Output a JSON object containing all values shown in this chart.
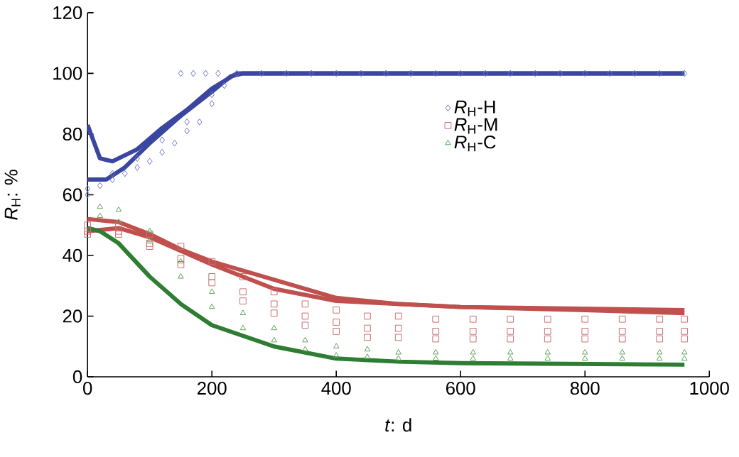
{
  "chart_data": {
    "type": "scatter",
    "xlabel": "*t*: d",
    "ylabel": "*R*$_{H}$: %",
    "xlim": [
      0,
      1000
    ],
    "ylim": [
      0,
      120
    ],
    "xticks": [
      0,
      200,
      400,
      600,
      800,
      1000
    ],
    "yticks": [
      0,
      20,
      40,
      60,
      80,
      100,
      120
    ],
    "grid": false,
    "legend": "center",
    "series": [
      {
        "name": "*R*$_{H}$-H",
        "marker": "diamond",
        "color": "#6a72c0",
        "x": [
          0,
          20,
          40,
          60,
          80,
          100,
          120,
          140,
          160,
          180,
          200,
          220,
          240,
          0,
          40,
          80,
          120,
          160,
          200,
          150,
          170,
          190,
          210,
          280,
          320,
          360,
          400,
          440,
          480,
          520,
          560,
          600,
          640,
          680,
          720,
          760,
          800,
          840,
          880,
          920,
          960
        ],
        "values": [
          60,
          63,
          65,
          67,
          69,
          71,
          74,
          77,
          81,
          84,
          90,
          96,
          100,
          62,
          67,
          72,
          78,
          84,
          93,
          100,
          100,
          100,
          100,
          100,
          100,
          100,
          100,
          100,
          100,
          100,
          100,
          100,
          100,
          100,
          100,
          100,
          100,
          100,
          100,
          100,
          100
        ]
      },
      {
        "name": "*R*$_{H}$-M",
        "marker": "square",
        "color": "#c9706d",
        "x": [
          0,
          50,
          100,
          150,
          200,
          250,
          300,
          350,
          400,
          450,
          500,
          560,
          620,
          680,
          740,
          800,
          860,
          920,
          960,
          0,
          50,
          100,
          150,
          200,
          250,
          300,
          350,
          400,
          450,
          500,
          560,
          620,
          680,
          740,
          800,
          860,
          920,
          960,
          0,
          50,
          100,
          150,
          200,
          250,
          300,
          350,
          400,
          450,
          500,
          560,
          620,
          680,
          740,
          800,
          860,
          920,
          960
        ],
        "values": [
          50,
          50,
          47,
          43,
          38,
          33,
          28,
          24,
          22,
          20,
          20,
          19,
          19,
          19,
          19,
          19,
          19,
          19,
          19,
          48,
          48,
          44,
          39,
          33,
          28,
          24,
          20,
          18,
          16,
          16,
          15,
          15,
          15,
          15,
          15,
          15,
          15,
          15,
          47,
          47,
          43,
          37,
          31,
          25,
          21,
          17,
          15,
          13,
          13,
          12.5,
          12.5,
          12.5,
          12.5,
          12.5,
          12.5,
          12.5,
          12.5
        ]
      },
      {
        "name": "*R*$_{H}$-C",
        "marker": "triangle",
        "color": "#5aa55a",
        "x": [
          20,
          50,
          100,
          150,
          200,
          250,
          300,
          350,
          400,
          450,
          500,
          560,
          620,
          680,
          740,
          800,
          860,
          920,
          960,
          20,
          50,
          100,
          150,
          200,
          250,
          300,
          350,
          400,
          450,
          500,
          560,
          620,
          680,
          740,
          800,
          860,
          920,
          960
        ],
        "values": [
          56,
          55,
          48,
          38,
          28,
          21,
          16,
          12,
          10,
          9,
          8,
          8,
          8,
          8,
          8,
          8,
          8,
          8,
          8,
          53,
          51,
          45,
          33,
          23,
          16,
          12,
          9,
          7,
          6.5,
          6,
          6,
          6,
          6,
          6,
          6,
          6,
          6,
          6
        ]
      },
      {
        "type": "line",
        "color": "#3a46a0",
        "x": [
          0,
          20,
          40,
          80,
          120,
          160,
          200,
          240,
          960
        ],
        "values": [
          83,
          72,
          71,
          75,
          82,
          88,
          95,
          100,
          100
        ]
      },
      {
        "type": "line",
        "color": "#3a46a0",
        "x": [
          0,
          30,
          60,
          100,
          150,
          200,
          230,
          250,
          960
        ],
        "values": [
          65,
          65,
          69,
          77,
          86,
          94,
          99,
          100,
          100
        ]
      },
      {
        "type": "line",
        "color": "#c0504d",
        "x": [
          0,
          50,
          100,
          150,
          200,
          300,
          400,
          500,
          600,
          800,
          960
        ],
        "values": [
          52,
          51,
          47,
          42,
          38,
          32,
          26,
          24,
          23,
          22,
          21
        ]
      },
      {
        "type": "line",
        "color": "#c0504d",
        "x": [
          0,
          50,
          100,
          200,
          300,
          400,
          600,
          960
        ],
        "values": [
          48,
          49,
          46,
          37,
          29,
          25,
          23,
          22
        ]
      },
      {
        "type": "line",
        "color": "#2e7d32",
        "x": [
          0,
          20,
          50,
          100,
          150,
          200,
          300,
          400,
          500,
          600,
          960
        ],
        "values": [
          49,
          48,
          44,
          33,
          24,
          17,
          10,
          6,
          5,
          4.5,
          4
        ]
      }
    ]
  }
}
